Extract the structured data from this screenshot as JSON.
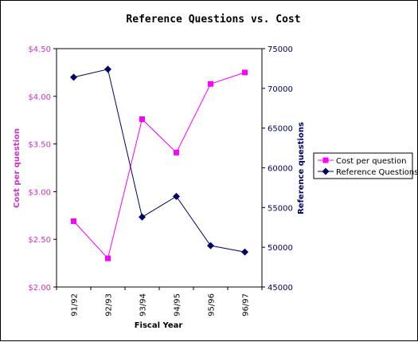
{
  "chart_data": {
    "type": "line",
    "title": "Reference Questions vs. Cost",
    "xlabel": "Fiscal Year",
    "categories": [
      "91/92",
      "92/93",
      "93/94",
      "94/95",
      "95/96",
      "96/97"
    ],
    "left_axis": {
      "label": "Cost per question",
      "ylim": [
        2.0,
        4.5
      ],
      "ticks": [
        2.0,
        2.5,
        3.0,
        3.5,
        4.0,
        4.5
      ],
      "tick_labels": [
        "$2.00",
        "$2.50",
        "$3.00",
        "$3.50",
        "$4.00",
        "$4.50"
      ],
      "color": "#cc33cc"
    },
    "right_axis": {
      "label": "Reference questions",
      "ylim": [
        45000,
        75000
      ],
      "ticks": [
        45000,
        50000,
        55000,
        60000,
        65000,
        70000,
        75000
      ],
      "tick_labels": [
        "45000",
        "50000",
        "55000",
        "60000",
        "65000",
        "70000",
        "75000"
      ],
      "color": "#000066"
    },
    "series": [
      {
        "name": "Cost per question",
        "axis": "left",
        "marker": "square",
        "color": "#ff00ff",
        "values": [
          2.69,
          2.3,
          3.76,
          3.41,
          4.13,
          4.25
        ]
      },
      {
        "name": "Reference Questions",
        "axis": "right",
        "marker": "diamond",
        "color": "#000066",
        "values": [
          71400,
          72400,
          53800,
          56400,
          50200,
          49400
        ]
      }
    ],
    "legend_position": "right",
    "grid": false
  }
}
